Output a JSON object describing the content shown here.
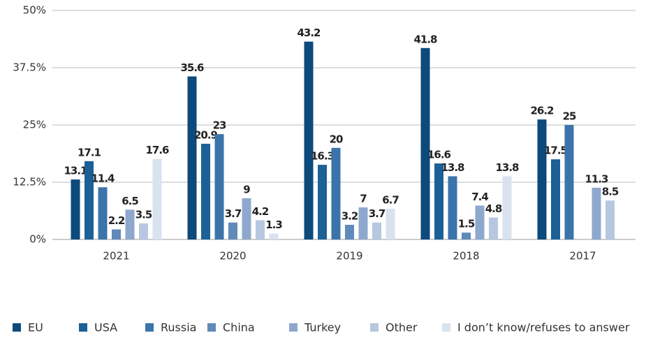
{
  "chart_data": {
    "type": "bar",
    "categories": [
      "2021",
      "2020",
      "2019",
      "2018",
      "2017"
    ],
    "series": [
      {
        "name": "EU",
        "color": "#0d4a7c",
        "values": [
          13.1,
          35.6,
          43.2,
          41.8,
          26.2
        ]
      },
      {
        "name": "USA",
        "color": "#1b6096",
        "values": [
          17.1,
          20.9,
          16.3,
          16.6,
          17.5
        ]
      },
      {
        "name": "Russia",
        "color": "#3b74aa",
        "values": [
          11.4,
          23,
          20,
          13.8,
          25
        ]
      },
      {
        "name": "China",
        "color": "#5f8aba",
        "values": [
          2.2,
          3.7,
          3.2,
          1.5,
          null
        ]
      },
      {
        "name": "Turkey",
        "color": "#8ea8cd",
        "values": [
          6.5,
          9,
          7,
          7.4,
          11.3
        ]
      },
      {
        "name": "Other",
        "color": "#b6c7df",
        "values": [
          3.5,
          4.2,
          3.7,
          4.8,
          8.5
        ]
      },
      {
        "name": "I don’t know/refuses to answer",
        "color": "#d9e2ef",
        "values": [
          17.6,
          1.3,
          6.7,
          13.8,
          null
        ]
      }
    ],
    "ylim": [
      0,
      50
    ],
    "yticks": [
      {
        "value": 0,
        "label": "0%"
      },
      {
        "value": 12.5,
        "label": "12.5%"
      },
      {
        "value": 25,
        "label": "25%"
      },
      {
        "value": 37.5,
        "label": "37.5%"
      },
      {
        "value": 50,
        "label": "50%"
      }
    ],
    "grid": true
  }
}
